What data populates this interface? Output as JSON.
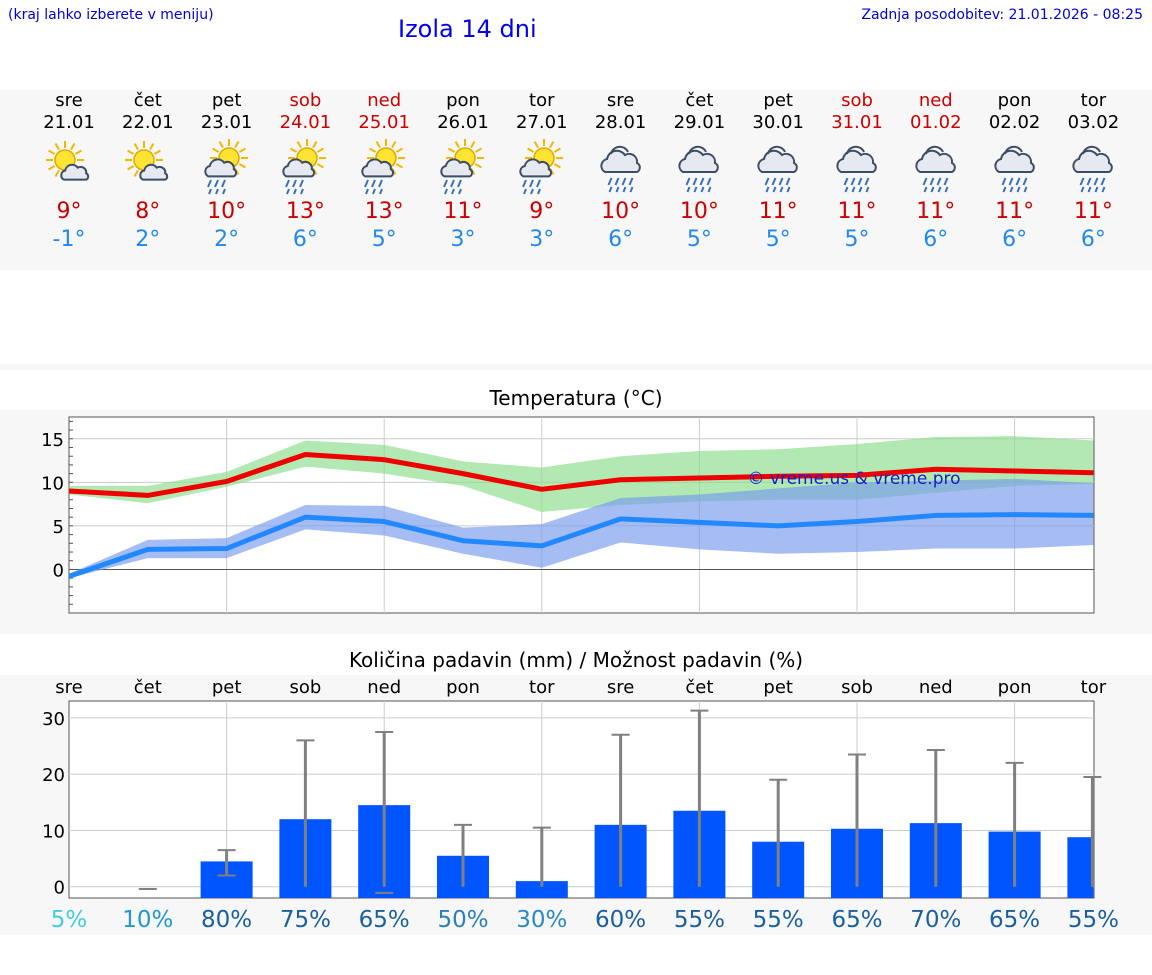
{
  "header": {
    "hint": "(kraj lahko izberete v meniju)",
    "title": "Izola 14 dni",
    "updated": "Zadnja posodobitev: 21.01.2026 - 08:25"
  },
  "days": [
    {
      "name": "sre",
      "date": "21.01",
      "weekend": false,
      "icon": "sun-cloud-icon",
      "max": "9°",
      "min": "-1°"
    },
    {
      "name": "čet",
      "date": "22.01",
      "weekend": false,
      "icon": "sun-cloud-icon",
      "max": "8°",
      "min": "2°"
    },
    {
      "name": "pet",
      "date": "23.01",
      "weekend": false,
      "icon": "sun-rain-icon",
      "max": "10°",
      "min": "2°"
    },
    {
      "name": "sob",
      "date": "24.01",
      "weekend": true,
      "icon": "sun-rain-icon",
      "max": "13°",
      "min": "6°"
    },
    {
      "name": "ned",
      "date": "25.01",
      "weekend": true,
      "icon": "sun-rain-icon",
      "max": "13°",
      "min": "5°"
    },
    {
      "name": "pon",
      "date": "26.01",
      "weekend": false,
      "icon": "sun-rain-icon",
      "max": "11°",
      "min": "3°"
    },
    {
      "name": "tor",
      "date": "27.01",
      "weekend": false,
      "icon": "sun-rain-icon",
      "max": "9°",
      "min": "3°"
    },
    {
      "name": "sre",
      "date": "28.01",
      "weekend": false,
      "icon": "rain-icon",
      "max": "10°",
      "min": "6°"
    },
    {
      "name": "čet",
      "date": "29.01",
      "weekend": false,
      "icon": "rain-icon",
      "max": "10°",
      "min": "5°"
    },
    {
      "name": "pet",
      "date": "30.01",
      "weekend": false,
      "icon": "rain-icon",
      "max": "11°",
      "min": "5°"
    },
    {
      "name": "sob",
      "date": "31.01",
      "weekend": true,
      "icon": "rain-icon",
      "max": "11°",
      "min": "5°"
    },
    {
      "name": "ned",
      "date": "01.02",
      "weekend": true,
      "icon": "rain-icon",
      "max": "11°",
      "min": "6°"
    },
    {
      "name": "pon",
      "date": "02.02",
      "weekend": false,
      "icon": "rain-icon",
      "max": "11°",
      "min": "6°"
    },
    {
      "name": "tor",
      "date": "03.02",
      "weekend": false,
      "icon": "rain-icon",
      "max": "11°",
      "min": "6°"
    }
  ],
  "colors": {
    "max_line": "#ee0000",
    "max_band": "#88dd88",
    "min_line": "#2288ff",
    "min_band": "#7799ee",
    "bar": "#0055ff",
    "whisker": "#808080",
    "grid": "#cccccc",
    "zero_line": "#555555",
    "weekend": "#cc0000"
  },
  "chart_data": [
    {
      "type": "line",
      "title": "Temperatura (°C)",
      "watermark": "© vreme.us & vreme.pro",
      "x": [
        "sre 21.01",
        "čet 22.01",
        "pet 23.01",
        "sob 24.01",
        "ned 25.01",
        "pon 26.01",
        "tor 27.01",
        "sre 28.01",
        "čet 29.01",
        "pet 30.01",
        "sob 31.01",
        "ned 01.02",
        "pon 02.02",
        "tor 03.02"
      ],
      "ylim": [
        -5,
        17.5
      ],
      "yticks": [
        0,
        5,
        10,
        15
      ],
      "yticks_label": [
        "0",
        "5",
        "10",
        "15"
      ],
      "series": [
        {
          "name": "max",
          "values": [
            9.0,
            8.5,
            10.1,
            13.2,
            12.6,
            11.0,
            9.2,
            10.3,
            10.5,
            10.7,
            10.8,
            11.5,
            11.3,
            11.1
          ],
          "band_low": [
            8.6,
            7.6,
            9.5,
            11.8,
            11.0,
            9.6,
            6.6,
            7.4,
            7.8,
            8.0,
            8.0,
            8.8,
            9.6,
            9.8
          ],
          "band_high": [
            9.6,
            9.6,
            11.2,
            14.8,
            14.3,
            12.4,
            11.7,
            13.0,
            13.6,
            13.8,
            14.4,
            15.2,
            15.3,
            14.8
          ]
        },
        {
          "name": "min",
          "values": [
            -0.8,
            2.3,
            2.4,
            6.0,
            5.5,
            3.3,
            2.7,
            5.8,
            5.4,
            5.0,
            5.5,
            6.2,
            6.3,
            6.2
          ],
          "band_low": [
            -1.0,
            1.3,
            1.3,
            4.6,
            3.9,
            1.8,
            0.2,
            3.1,
            2.3,
            1.8,
            2.0,
            2.4,
            2.4,
            2.8
          ],
          "band_high": [
            -0.5,
            3.4,
            3.6,
            7.4,
            7.3,
            4.8,
            5.2,
            8.2,
            8.6,
            9.3,
            10.0,
            10.2,
            10.4,
            9.9
          ]
        }
      ]
    },
    {
      "type": "bar",
      "title": "Količina padavin (mm) / Možnost padavin (%)",
      "categories": [
        "sre",
        "čet",
        "pet",
        "sob",
        "ned",
        "pon",
        "tor",
        "sre",
        "čet",
        "pet",
        "sob",
        "ned",
        "pon",
        "tor"
      ],
      "ylim": [
        -2,
        33
      ],
      "yticks": [
        0,
        10,
        20,
        30
      ],
      "yticks_label": [
        "0",
        "10",
        "20",
        "30"
      ],
      "values": [
        0,
        0,
        4.5,
        12.0,
        14.5,
        5.5,
        1.0,
        11.0,
        13.5,
        8.0,
        10.3,
        11.3,
        9.8,
        8.8
      ],
      "err_low": [
        0,
        0,
        2.0,
        0,
        0,
        0,
        0,
        0,
        0,
        0,
        0,
        0,
        0,
        0
      ],
      "err_high": [
        0,
        0,
        6.5,
        26.0,
        27.5,
        11.0,
        10.5,
        27.0,
        31.3,
        19.0,
        23.5,
        24.3,
        22.0,
        19.5
      ],
      "probability": [
        "5%",
        "10%",
        "80%",
        "75%",
        "65%",
        "50%",
        "30%",
        "60%",
        "55%",
        "55%",
        "65%",
        "70%",
        "65%",
        "55%"
      ],
      "probability_values": [
        5,
        10,
        80,
        75,
        65,
        50,
        30,
        60,
        55,
        55,
        65,
        70,
        65,
        55
      ]
    }
  ]
}
